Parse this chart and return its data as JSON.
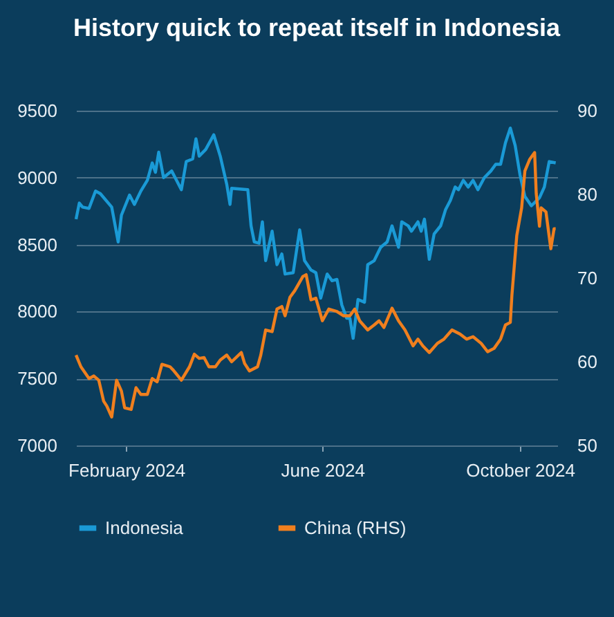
{
  "chart_data": {
    "type": "line",
    "title": "History quick to repeat itself in Indonesia",
    "xlim": [
      "2024-01-01",
      "2024-10-24"
    ],
    "xticks": [
      {
        "value": "2024-02-01",
        "label": "February 2024"
      },
      {
        "value": "2024-06-01",
        "label": "June 2024"
      },
      {
        "value": "2024-10-01",
        "label": "October 2024"
      }
    ],
    "ylim": [
      7000,
      9500
    ],
    "yticks": [
      7000,
      7500,
      8000,
      8500,
      9000,
      9500
    ],
    "y2lim": [
      50,
      90
    ],
    "y2ticks": [
      50,
      60,
      70,
      80,
      90
    ],
    "grid": "y",
    "legend": "bottom",
    "line_style": "solid",
    "marker": "none",
    "series": [
      {
        "name": "Indonesia",
        "color": "#1a9ad6",
        "axis": "y",
        "x": [
          "2024-01-01",
          "2024-01-03",
          "2024-01-05",
          "2024-01-09",
          "2024-01-13",
          "2024-01-16",
          "2024-01-23",
          "2024-01-27",
          "2024-01-29",
          "2024-02-03",
          "2024-02-06",
          "2024-02-10",
          "2024-02-14",
          "2024-02-17",
          "2024-02-19",
          "2024-02-21",
          "2024-02-24",
          "2024-02-29",
          "2024-03-06",
          "2024-03-09",
          "2024-03-13",
          "2024-03-15",
          "2024-03-17",
          "2024-03-21",
          "2024-03-26",
          "2024-03-30",
          "2024-04-03",
          "2024-04-05",
          "2024-04-06",
          "2024-04-16",
          "2024-04-18",
          "2024-04-20",
          "2024-04-23",
          "2024-04-25",
          "2024-04-27",
          "2024-05-01",
          "2024-05-04",
          "2024-05-07",
          "2024-05-09",
          "2024-05-14",
          "2024-05-18",
          "2024-05-21",
          "2024-05-25",
          "2024-05-28",
          "2024-05-31",
          "2024-06-04",
          "2024-06-07",
          "2024-06-10",
          "2024-06-13",
          "2024-06-16",
          "2024-06-18",
          "2024-06-20",
          "2024-06-23",
          "2024-06-27",
          "2024-06-29",
          "2024-07-03",
          "2024-07-07",
          "2024-07-11",
          "2024-07-14",
          "2024-07-18",
          "2024-07-20",
          "2024-07-24",
          "2024-07-26",
          "2024-07-30",
          "2024-08-01",
          "2024-08-03",
          "2024-08-06",
          "2024-08-09",
          "2024-08-13",
          "2024-08-16",
          "2024-08-19",
          "2024-08-22",
          "2024-08-24",
          "2024-08-27",
          "2024-08-30",
          "2024-09-02",
          "2024-09-05",
          "2024-09-09",
          "2024-09-13",
          "2024-09-16",
          "2024-09-19",
          "2024-09-22",
          "2024-09-25",
          "2024-09-28",
          "2024-10-01",
          "2024-10-04",
          "2024-10-08",
          "2024-10-13",
          "2024-10-16",
          "2024-10-19",
          "2024-10-23"
        ],
        "values": [
          8690,
          8810,
          8780,
          8770,
          8900,
          8880,
          8780,
          8520,
          8720,
          8870,
          8800,
          8900,
          8980,
          9110,
          9040,
          9190,
          9000,
          9050,
          8910,
          9120,
          9140,
          9290,
          9160,
          9210,
          9320,
          9160,
          8950,
          8800,
          8920,
          8910,
          8640,
          8520,
          8510,
          8670,
          8380,
          8600,
          8350,
          8430,
          8280,
          8290,
          8610,
          8380,
          8310,
          8290,
          8100,
          8280,
          8230,
          8240,
          8050,
          7950,
          7950,
          7800,
          8090,
          8070,
          8350,
          8380,
          8480,
          8520,
          8640,
          8480,
          8670,
          8640,
          8600,
          8670,
          8600,
          8690,
          8390,
          8580,
          8640,
          8760,
          8830,
          8930,
          8910,
          8980,
          8930,
          8980,
          8910,
          9000,
          9050,
          9100,
          9100,
          9260,
          9370,
          9240,
          9020,
          8860,
          8790,
          8850,
          8930,
          9120,
          9110
        ]
      },
      {
        "name": "China (RHS)",
        "color": "#f07f1e",
        "axis": "y2",
        "x": [
          "2024-01-01",
          "2024-01-04",
          "2024-01-09",
          "2024-01-12",
          "2024-01-15",
          "2024-01-18",
          "2024-01-20",
          "2024-01-23",
          "2024-01-26",
          "2024-01-29",
          "2024-01-31",
          "2024-02-04",
          "2024-02-07",
          "2024-02-10",
          "2024-02-14",
          "2024-02-17",
          "2024-02-20",
          "2024-02-23",
          "2024-02-28",
          "2024-03-01",
          "2024-03-06",
          "2024-03-11",
          "2024-03-14",
          "2024-03-17",
          "2024-03-20",
          "2024-03-23",
          "2024-03-27",
          "2024-03-30",
          "2024-04-03",
          "2024-04-06",
          "2024-04-12",
          "2024-04-14",
          "2024-04-17",
          "2024-04-22",
          "2024-04-24",
          "2024-04-27",
          "2024-05-01",
          "2024-05-04",
          "2024-05-07",
          "2024-05-09",
          "2024-05-12",
          "2024-05-15",
          "2024-05-20",
          "2024-05-22",
          "2024-05-25",
          "2024-05-28",
          "2024-06-01",
          "2024-06-05",
          "2024-06-10",
          "2024-06-14",
          "2024-06-18",
          "2024-06-21",
          "2024-06-24",
          "2024-06-29",
          "2024-07-03",
          "2024-07-06",
          "2024-07-09",
          "2024-07-14",
          "2024-07-18",
          "2024-07-22",
          "2024-07-27",
          "2024-07-30",
          "2024-08-02",
          "2024-08-06",
          "2024-08-11",
          "2024-08-15",
          "2024-08-20",
          "2024-08-25",
          "2024-08-29",
          "2024-09-02",
          "2024-09-07",
          "2024-09-11",
          "2024-09-15",
          "2024-09-19",
          "2024-09-22",
          "2024-09-25",
          "2024-09-26",
          "2024-09-29",
          "2024-10-02",
          "2024-10-04",
          "2024-10-07",
          "2024-10-10",
          "2024-10-11",
          "2024-10-13",
          "2024-10-14",
          "2024-10-17",
          "2024-10-20",
          "2024-10-22",
          "2024-10-23"
        ],
        "values": [
          60.8,
          59.4,
          58.0,
          58.3,
          57.8,
          55.3,
          54.7,
          53.4,
          57.8,
          56.5,
          54.5,
          54.3,
          56.9,
          56.1,
          56.1,
          58.0,
          57.6,
          59.7,
          59.4,
          59.0,
          57.8,
          59.4,
          60.9,
          60.4,
          60.5,
          59.4,
          59.4,
          60.2,
          60.8,
          60.0,
          61.1,
          59.8,
          58.9,
          59.4,
          60.8,
          63.8,
          63.6,
          66.3,
          66.6,
          65.5,
          67.7,
          68.5,
          70.2,
          70.4,
          67.4,
          67.6,
          64.9,
          66.3,
          66.0,
          65.5,
          65.5,
          66.3,
          64.9,
          63.8,
          64.4,
          64.9,
          64.1,
          66.4,
          64.9,
          63.8,
          61.9,
          62.7,
          61.9,
          61.1,
          62.2,
          62.7,
          63.8,
          63.3,
          62.7,
          63.0,
          62.2,
          61.2,
          61.6,
          62.7,
          64.4,
          64.7,
          68.0,
          75.1,
          78.4,
          82.8,
          84.2,
          85.0,
          80.1,
          76.2,
          78.4,
          77.9,
          73.5,
          75.9,
          75.9
        ]
      }
    ]
  }
}
